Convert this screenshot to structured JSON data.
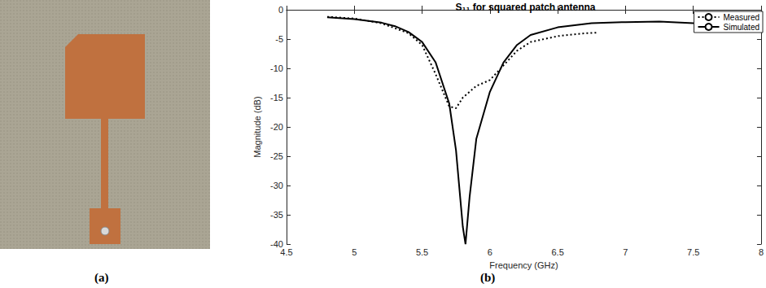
{
  "panel_labels": [
    "(a)",
    "(b)"
  ],
  "chart_data": {
    "type": "line",
    "title": "S₁₁ for squared patch antenna",
    "x_label": "Frequency (GHz)",
    "y_label": "Magnitude (dB)",
    "xlim": [
      4.5,
      8
    ],
    "xticks": [
      4.5,
      5,
      5.5,
      6,
      6.5,
      7,
      7.5,
      8
    ],
    "ylim": [
      -40,
      0
    ],
    "yticks": [
      -40,
      -35,
      -30,
      -25,
      -20,
      -15,
      -10,
      -5,
      0
    ],
    "grid": false,
    "legend": "upper right",
    "series": [
      {
        "name": "Measured",
        "color": "#000000",
        "line_style": "dotted",
        "x": [
          4.8,
          5.0,
          5.2,
          5.4,
          5.5,
          5.6,
          5.7,
          5.75,
          5.8,
          5.9,
          6.0,
          6.1,
          6.2,
          6.3,
          6.5,
          6.7,
          6.8
        ],
        "values": [
          -1.2,
          -1.5,
          -2.3,
          -4,
          -6,
          -11,
          -16.5,
          -16.8,
          -15,
          -13,
          -12,
          -9.5,
          -7,
          -5.5,
          -4.5,
          -4.0,
          -3.9
        ]
      },
      {
        "name": "Simulated",
        "color": "#000000",
        "line_style": "solid",
        "x": [
          4.8,
          5.0,
          5.2,
          5.3,
          5.4,
          5.5,
          5.6,
          5.7,
          5.75,
          5.8,
          5.82,
          5.85,
          5.9,
          6.0,
          6.1,
          6.2,
          6.3,
          6.5,
          6.75,
          7.0,
          7.25,
          7.5,
          7.75,
          8.0
        ],
        "values": [
          -1.3,
          -1.6,
          -2.2,
          -2.8,
          -3.8,
          -5.5,
          -9,
          -16,
          -24,
          -37,
          -40,
          -32,
          -22,
          -14,
          -9,
          -6,
          -4.3,
          -3,
          -2.3,
          -2.1,
          -2.0,
          -2.3,
          -2.6,
          -2.8
        ]
      }
    ]
  }
}
